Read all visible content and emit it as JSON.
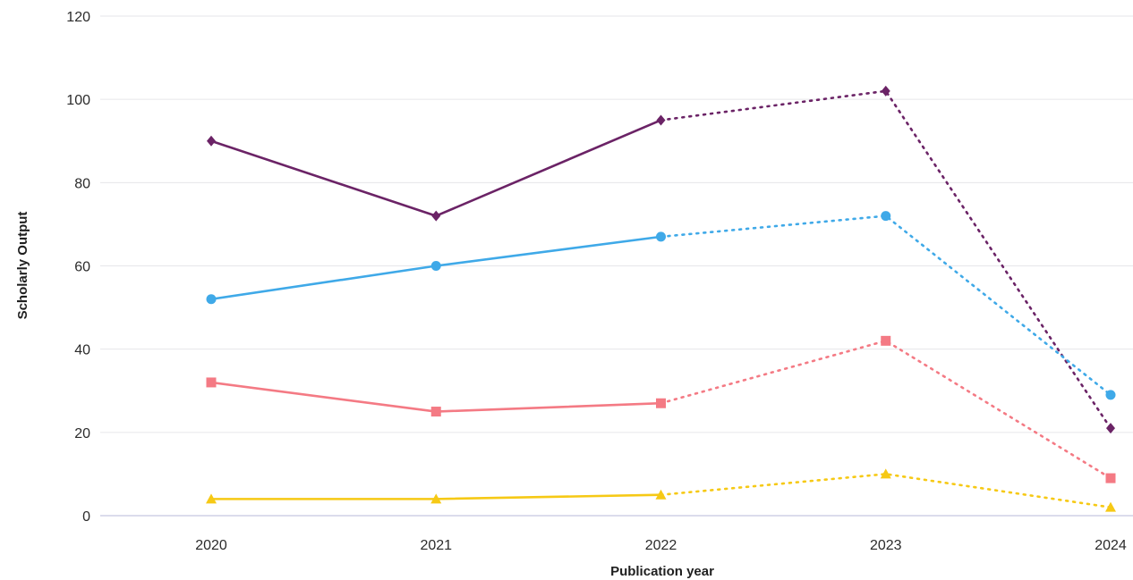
{
  "chart_data": {
    "type": "line",
    "title": "",
    "xlabel": "Publication year",
    "ylabel": "Scholarly Output",
    "x": [
      "2020",
      "2021",
      "2022",
      "2023",
      "2024"
    ],
    "ylim": [
      0,
      120
    ],
    "yticks": [
      0,
      20,
      40,
      60,
      80,
      100,
      120
    ],
    "grid": true,
    "legend": "none",
    "solid_through_index": 2,
    "note": "Segments after 2022 are drawn dotted",
    "series": [
      {
        "color": "#6b2366",
        "marker": "diamond",
        "values": [
          90,
          72,
          95,
          102,
          21
        ]
      },
      {
        "color": "#3fa9e8",
        "marker": "circle",
        "values": [
          52,
          60,
          67,
          72,
          29
        ]
      },
      {
        "color": "#f47a84",
        "marker": "square",
        "values": [
          32,
          25,
          27,
          42,
          9
        ]
      },
      {
        "color": "#f6c915",
        "marker": "triangle",
        "values": [
          4,
          4,
          5,
          10,
          2
        ]
      }
    ]
  }
}
